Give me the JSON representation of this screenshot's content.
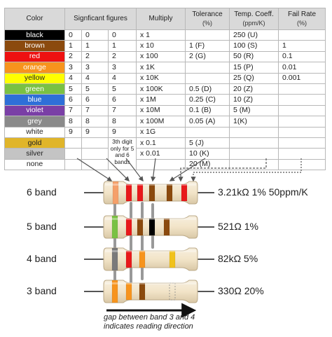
{
  "table": {
    "headers": {
      "color": "Color",
      "sig": "Signficant figures",
      "multiply": "Multiply",
      "tolerance": "Tolerance",
      "tolerance_unit": "(%)",
      "temp": "Temp. Coeff.",
      "temp_unit": "(ppm/K)",
      "fail": "Fail Rate",
      "fail_unit": "(%)"
    },
    "rows": [
      {
        "color": "black",
        "bg": "#000000",
        "fg": "#ffffff",
        "d1": "0",
        "d2": "0",
        "d3": "0",
        "mult": "x 1",
        "tol": "",
        "temp": "250 (U)",
        "fail": ""
      },
      {
        "color": "brown",
        "bg": "#8b4a0e",
        "fg": "#ffffff",
        "d1": "1",
        "d2": "1",
        "d3": "1",
        "mult": "x 10",
        "tol": "1 (F)",
        "temp": "100 (S)",
        "fail": "1"
      },
      {
        "color": "red",
        "bg": "#ee1111",
        "fg": "#ffffff",
        "d1": "2",
        "d2": "2",
        "d3": "2",
        "mult": "x 100",
        "tol": "2 (G)",
        "temp": "50 (R)",
        "fail": "0.1"
      },
      {
        "color": "orange",
        "bg": "#f7941d",
        "fg": "#ffffff",
        "d1": "3",
        "d2": "3",
        "d3": "3",
        "mult": "x 1K",
        "tol": "",
        "temp": "15 (P)",
        "fail": "0.01"
      },
      {
        "color": "yellow",
        "bg": "#ffff00",
        "fg": "#222222",
        "d1": "4",
        "d2": "4",
        "d3": "4",
        "mult": "x 10K",
        "tol": "",
        "temp": "25 (Q)",
        "fail": "0.001"
      },
      {
        "color": "green",
        "bg": "#7ac143",
        "fg": "#ffffff",
        "d1": "5",
        "d2": "5",
        "d3": "5",
        "mult": "x 100K",
        "tol": "0.5 (D)",
        "temp": "20 (Z)",
        "fail": ""
      },
      {
        "color": "blue",
        "bg": "#2e6fd8",
        "fg": "#ffffff",
        "d1": "6",
        "d2": "6",
        "d3": "6",
        "mult": "x 1M",
        "tol": "0.25 (C)",
        "temp": "10 (Z)",
        "fail": ""
      },
      {
        "color": "violet",
        "bg": "#7a3fa6",
        "fg": "#ffffff",
        "d1": "7",
        "d2": "7",
        "d3": "7",
        "mult": "x 10M",
        "tol": "0.1 (B)",
        "temp": "5 (M)",
        "fail": ""
      },
      {
        "color": "grey",
        "bg": "#8a8a8a",
        "fg": "#ffffff",
        "d1": "8",
        "d2": "8",
        "d3": "8",
        "mult": "x 100M",
        "tol": "0.05 (A)",
        "temp": "1(K)",
        "fail": ""
      },
      {
        "color": "white",
        "bg": "#ffffff",
        "fg": "#222222",
        "d1": "9",
        "d2": "9",
        "d3": "9",
        "mult": "x 1G",
        "tol": "",
        "temp": "",
        "fail": ""
      },
      {
        "color": "gold",
        "bg": "#e0b52a",
        "fg": "#222222",
        "d1": "",
        "d2": "",
        "d3": "",
        "mult": "x 0.1",
        "tol": "5 (J)",
        "temp": "",
        "fail": ""
      },
      {
        "color": "silver",
        "bg": "#c4c4c4",
        "fg": "#222222",
        "d1": "",
        "d2": "",
        "d3": "",
        "mult": "x 0.01",
        "tol": "10 (K)",
        "temp": "",
        "fail": ""
      },
      {
        "color": "none",
        "bg": "#ffffff",
        "fg": "#222222",
        "d1": "",
        "d2": "",
        "d3": "",
        "mult": "",
        "tol": "20 (M)",
        "temp": "",
        "fail": ""
      }
    ],
    "third_digit_note": "3th digit only for 5 and 6 bands"
  },
  "resistors": [
    {
      "label": "6 band",
      "value": "3.21kΩ 1% 50ppm/K",
      "bands": [
        "#f5a06a",
        "#e8191b",
        "#e8191b",
        "#8b4a0e",
        "#8b4a0e",
        "#e8191b"
      ]
    },
    {
      "label": "5 band",
      "value": "521Ω 1%",
      "bands": [
        "#7ac143",
        "#e8191b",
        "#8b4a0e",
        "#000000",
        "#8b4a0e"
      ]
    },
    {
      "label": "4 band",
      "value": "82kΩ 5%",
      "bands": [
        "#7a7a7a",
        "#e8191b",
        "#f7941d",
        "#f1c21b"
      ]
    },
    {
      "label": "3 band",
      "value": "330Ω 20%",
      "bands": [
        "#f7941d",
        "#f7941d",
        "#8b4a0e"
      ]
    }
  ],
  "caption": {
    "line1": "gap between band 3 and 4",
    "line2": "indicates reading direction"
  }
}
